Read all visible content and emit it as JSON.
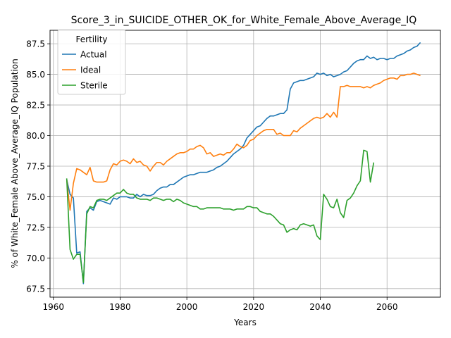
{
  "chart_data": {
    "type": "line",
    "title": "Score_3_in_SUICIDE_OTHER_OK_for_White_Female_Above_Average_IQ",
    "xlabel": "Years",
    "ylabel": "% of White_Female Above_Average_IQ Population",
    "xlim": [
      1959,
      2076
    ],
    "ylim": [
      66.8,
      88.6
    ],
    "xticks": [
      1960,
      1980,
      2000,
      2020,
      2040,
      2060
    ],
    "xtick_labels": [
      "1960",
      "1980",
      "2000",
      "2020",
      "2040",
      "2060"
    ],
    "yticks": [
      67.5,
      70.0,
      72.5,
      75.0,
      77.5,
      80.0,
      82.5,
      85.0,
      87.5
    ],
    "ytick_labels": [
      "67.5",
      "70.0",
      "72.5",
      "75.0",
      "77.5",
      "80.0",
      "82.5",
      "85.0",
      "87.5"
    ],
    "grid": true,
    "legend": {
      "title": "Fertility",
      "placement": "top-left"
    },
    "series": [
      {
        "name": "Actual",
        "color": "#1f77b4",
        "points": [
          [
            1964,
            76.4
          ],
          [
            1965,
            75.2
          ],
          [
            1966,
            74.9
          ],
          [
            1967,
            70.4
          ],
          [
            1968,
            70.5
          ],
          [
            1969,
            67.9
          ],
          [
            1970,
            73.8
          ],
          [
            1971,
            74.1
          ],
          [
            1972,
            73.9
          ],
          [
            1973,
            74.6
          ],
          [
            1974,
            74.7
          ],
          [
            1975,
            74.6
          ],
          [
            1976,
            74.5
          ],
          [
            1977,
            74.4
          ],
          [
            1978,
            74.9
          ],
          [
            1979,
            74.8
          ],
          [
            1980,
            75.0
          ],
          [
            1981,
            75.0
          ],
          [
            1982,
            75.0
          ],
          [
            1983,
            74.9
          ],
          [
            1984,
            74.9
          ],
          [
            1985,
            75.2
          ],
          [
            1986,
            75.0
          ],
          [
            1987,
            75.2
          ],
          [
            1988,
            75.1
          ],
          [
            1989,
            75.1
          ],
          [
            1990,
            75.2
          ],
          [
            1991,
            75.5
          ],
          [
            1992,
            75.7
          ],
          [
            1993,
            75.8
          ],
          [
            1994,
            75.8
          ],
          [
            1995,
            76.0
          ],
          [
            1996,
            76.0
          ],
          [
            1997,
            76.2
          ],
          [
            1998,
            76.4
          ],
          [
            1999,
            76.6
          ],
          [
            2000,
            76.7
          ],
          [
            2001,
            76.8
          ],
          [
            2002,
            76.8
          ],
          [
            2003,
            76.9
          ],
          [
            2004,
            77.0
          ],
          [
            2005,
            77.0
          ],
          [
            2006,
            77.0
          ],
          [
            2007,
            77.1
          ],
          [
            2008,
            77.2
          ],
          [
            2009,
            77.4
          ],
          [
            2010,
            77.5
          ],
          [
            2011,
            77.7
          ],
          [
            2012,
            77.9
          ],
          [
            2013,
            78.2
          ],
          [
            2014,
            78.5
          ],
          [
            2015,
            78.7
          ],
          [
            2016,
            78.9
          ],
          [
            2017,
            79.2
          ],
          [
            2018,
            79.8
          ],
          [
            2019,
            80.1
          ],
          [
            2020,
            80.4
          ],
          [
            2021,
            80.7
          ],
          [
            2022,
            80.8
          ],
          [
            2023,
            81.1
          ],
          [
            2024,
            81.4
          ],
          [
            2025,
            81.6
          ],
          [
            2026,
            81.6
          ],
          [
            2027,
            81.7
          ],
          [
            2028,
            81.8
          ],
          [
            2029,
            81.8
          ],
          [
            2030,
            82.1
          ],
          [
            2031,
            83.8
          ],
          [
            2032,
            84.3
          ],
          [
            2033,
            84.4
          ],
          [
            2034,
            84.5
          ],
          [
            2035,
            84.5
          ],
          [
            2036,
            84.6
          ],
          [
            2037,
            84.7
          ],
          [
            2038,
            84.8
          ],
          [
            2039,
            85.1
          ],
          [
            2040,
            85.0
          ],
          [
            2041,
            85.1
          ],
          [
            2042,
            84.9
          ],
          [
            2043,
            85.0
          ],
          [
            2044,
            84.8
          ],
          [
            2045,
            84.9
          ],
          [
            2046,
            85.0
          ],
          [
            2047,
            85.2
          ],
          [
            2048,
            85.3
          ],
          [
            2049,
            85.6
          ],
          [
            2050,
            85.9
          ],
          [
            2051,
            86.1
          ],
          [
            2052,
            86.2
          ],
          [
            2053,
            86.2
          ],
          [
            2054,
            86.5
          ],
          [
            2055,
            86.3
          ],
          [
            2056,
            86.4
          ],
          [
            2057,
            86.2
          ],
          [
            2058,
            86.3
          ],
          [
            2059,
            86.3
          ],
          [
            2060,
            86.2
          ],
          [
            2061,
            86.3
          ],
          [
            2062,
            86.3
          ],
          [
            2063,
            86.5
          ],
          [
            2064,
            86.6
          ],
          [
            2065,
            86.7
          ],
          [
            2066,
            86.9
          ],
          [
            2067,
            87.0
          ],
          [
            2068,
            87.2
          ],
          [
            2069,
            87.3
          ],
          [
            2070,
            87.6
          ]
        ]
      },
      {
        "name": "Ideal",
        "color": "#ff7f0e",
        "points": [
          [
            1964,
            76.4
          ],
          [
            1965,
            73.9
          ],
          [
            1966,
            76.1
          ],
          [
            1967,
            77.3
          ],
          [
            1968,
            77.2
          ],
          [
            1969,
            77.0
          ],
          [
            1970,
            76.8
          ],
          [
            1971,
            77.4
          ],
          [
            1972,
            76.3
          ],
          [
            1973,
            76.2
          ],
          [
            1974,
            76.2
          ],
          [
            1975,
            76.2
          ],
          [
            1976,
            76.3
          ],
          [
            1977,
            77.2
          ],
          [
            1978,
            77.7
          ],
          [
            1979,
            77.6
          ],
          [
            1980,
            77.9
          ],
          [
            1981,
            78.0
          ],
          [
            1982,
            77.9
          ],
          [
            1983,
            77.7
          ],
          [
            1984,
            78.1
          ],
          [
            1985,
            77.8
          ],
          [
            1986,
            77.9
          ],
          [
            1987,
            77.6
          ],
          [
            1988,
            77.5
          ],
          [
            1989,
            77.1
          ],
          [
            1990,
            77.5
          ],
          [
            1991,
            77.8
          ],
          [
            1992,
            77.8
          ],
          [
            1993,
            77.6
          ],
          [
            1994,
            77.9
          ],
          [
            1995,
            78.1
          ],
          [
            1996,
            78.3
          ],
          [
            1997,
            78.5
          ],
          [
            1998,
            78.6
          ],
          [
            1999,
            78.6
          ],
          [
            2000,
            78.7
          ],
          [
            2001,
            78.9
          ],
          [
            2002,
            78.9
          ],
          [
            2003,
            79.1
          ],
          [
            2004,
            79.2
          ],
          [
            2005,
            79.0
          ],
          [
            2006,
            78.5
          ],
          [
            2007,
            78.6
          ],
          [
            2008,
            78.3
          ],
          [
            2009,
            78.4
          ],
          [
            2010,
            78.5
          ],
          [
            2011,
            78.4
          ],
          [
            2012,
            78.6
          ],
          [
            2013,
            78.6
          ],
          [
            2014,
            78.9
          ],
          [
            2015,
            79.3
          ],
          [
            2016,
            79.1
          ],
          [
            2017,
            79.0
          ],
          [
            2018,
            79.2
          ],
          [
            2019,
            79.6
          ],
          [
            2020,
            79.7
          ],
          [
            2021,
            80.0
          ],
          [
            2022,
            80.2
          ],
          [
            2023,
            80.4
          ],
          [
            2024,
            80.5
          ],
          [
            2025,
            80.5
          ],
          [
            2026,
            80.5
          ],
          [
            2027,
            80.1
          ],
          [
            2028,
            80.2
          ],
          [
            2029,
            80.0
          ],
          [
            2030,
            80.0
          ],
          [
            2031,
            80.0
          ],
          [
            2032,
            80.4
          ],
          [
            2033,
            80.3
          ],
          [
            2034,
            80.6
          ],
          [
            2035,
            80.8
          ],
          [
            2036,
            81.0
          ],
          [
            2037,
            81.2
          ],
          [
            2038,
            81.4
          ],
          [
            2039,
            81.5
          ],
          [
            2040,
            81.4
          ],
          [
            2041,
            81.5
          ],
          [
            2042,
            81.8
          ],
          [
            2043,
            81.5
          ],
          [
            2044,
            81.9
          ],
          [
            2045,
            81.5
          ],
          [
            2046,
            84.0
          ],
          [
            2047,
            84.0
          ],
          [
            2048,
            84.1
          ],
          [
            2049,
            84.0
          ],
          [
            2050,
            84.0
          ],
          [
            2051,
            84.0
          ],
          [
            2052,
            84.0
          ],
          [
            2053,
            83.9
          ],
          [
            2054,
            84.0
          ],
          [
            2055,
            83.9
          ],
          [
            2056,
            84.1
          ],
          [
            2057,
            84.2
          ],
          [
            2058,
            84.3
          ],
          [
            2059,
            84.5
          ],
          [
            2060,
            84.6
          ],
          [
            2061,
            84.7
          ],
          [
            2062,
            84.7
          ],
          [
            2063,
            84.6
          ],
          [
            2064,
            84.9
          ],
          [
            2065,
            84.9
          ],
          [
            2066,
            85.0
          ],
          [
            2067,
            85.0
          ],
          [
            2068,
            85.1
          ],
          [
            2069,
            85.0
          ],
          [
            2070,
            84.9
          ]
        ]
      },
      {
        "name": "Sterile",
        "color": "#2ca02c",
        "points": [
          [
            1964,
            76.5
          ],
          [
            1965,
            70.7
          ],
          [
            1966,
            69.9
          ],
          [
            1967,
            70.3
          ],
          [
            1968,
            70.3
          ],
          [
            1969,
            68.0
          ],
          [
            1970,
            73.6
          ],
          [
            1971,
            74.2
          ],
          [
            1972,
            74.1
          ],
          [
            1973,
            74.7
          ],
          [
            1974,
            74.8
          ],
          [
            1975,
            74.8
          ],
          [
            1976,
            74.7
          ],
          [
            1977,
            74.9
          ],
          [
            1978,
            75.1
          ],
          [
            1979,
            75.3
          ],
          [
            1980,
            75.3
          ],
          [
            1981,
            75.6
          ],
          [
            1982,
            75.3
          ],
          [
            1983,
            75.2
          ],
          [
            1984,
            75.2
          ],
          [
            1985,
            74.9
          ],
          [
            1986,
            74.8
          ],
          [
            1987,
            74.8
          ],
          [
            1988,
            74.8
          ],
          [
            1989,
            74.7
          ],
          [
            1990,
            74.9
          ],
          [
            1991,
            74.9
          ],
          [
            1992,
            74.8
          ],
          [
            1993,
            74.7
          ],
          [
            1994,
            74.8
          ],
          [
            1995,
            74.8
          ],
          [
            1996,
            74.6
          ],
          [
            1997,
            74.8
          ],
          [
            1998,
            74.7
          ],
          [
            1999,
            74.5
          ],
          [
            2000,
            74.4
          ],
          [
            2001,
            74.3
          ],
          [
            2002,
            74.2
          ],
          [
            2003,
            74.2
          ],
          [
            2004,
            74.0
          ],
          [
            2005,
            74.0
          ],
          [
            2006,
            74.1
          ],
          [
            2007,
            74.1
          ],
          [
            2008,
            74.1
          ],
          [
            2009,
            74.1
          ],
          [
            2010,
            74.1
          ],
          [
            2011,
            74.0
          ],
          [
            2012,
            74.0
          ],
          [
            2013,
            74.0
          ],
          [
            2014,
            73.9
          ],
          [
            2015,
            74.0
          ],
          [
            2016,
            74.0
          ],
          [
            2017,
            74.0
          ],
          [
            2018,
            74.2
          ],
          [
            2019,
            74.2
          ],
          [
            2020,
            74.1
          ],
          [
            2021,
            74.1
          ],
          [
            2022,
            73.8
          ],
          [
            2023,
            73.7
          ],
          [
            2024,
            73.6
          ],
          [
            2025,
            73.6
          ],
          [
            2026,
            73.4
          ],
          [
            2027,
            73.1
          ],
          [
            2028,
            72.8
          ],
          [
            2029,
            72.7
          ],
          [
            2030,
            72.1
          ],
          [
            2031,
            72.3
          ],
          [
            2032,
            72.4
          ],
          [
            2033,
            72.3
          ],
          [
            2034,
            72.7
          ],
          [
            2035,
            72.8
          ],
          [
            2036,
            72.7
          ],
          [
            2037,
            72.6
          ],
          [
            2038,
            72.7
          ],
          [
            2039,
            71.8
          ],
          [
            2040,
            71.5
          ],
          [
            2041,
            75.2
          ],
          [
            2042,
            74.8
          ],
          [
            2043,
            74.2
          ],
          [
            2044,
            74.1
          ],
          [
            2045,
            74.8
          ],
          [
            2046,
            73.7
          ],
          [
            2047,
            73.3
          ],
          [
            2048,
            74.7
          ],
          [
            2049,
            74.9
          ],
          [
            2050,
            75.3
          ],
          [
            2051,
            75.9
          ],
          [
            2052,
            76.3
          ],
          [
            2053,
            78.8
          ],
          [
            2054,
            78.7
          ],
          [
            2055,
            76.2
          ],
          [
            2056,
            77.8
          ]
        ]
      }
    ]
  }
}
